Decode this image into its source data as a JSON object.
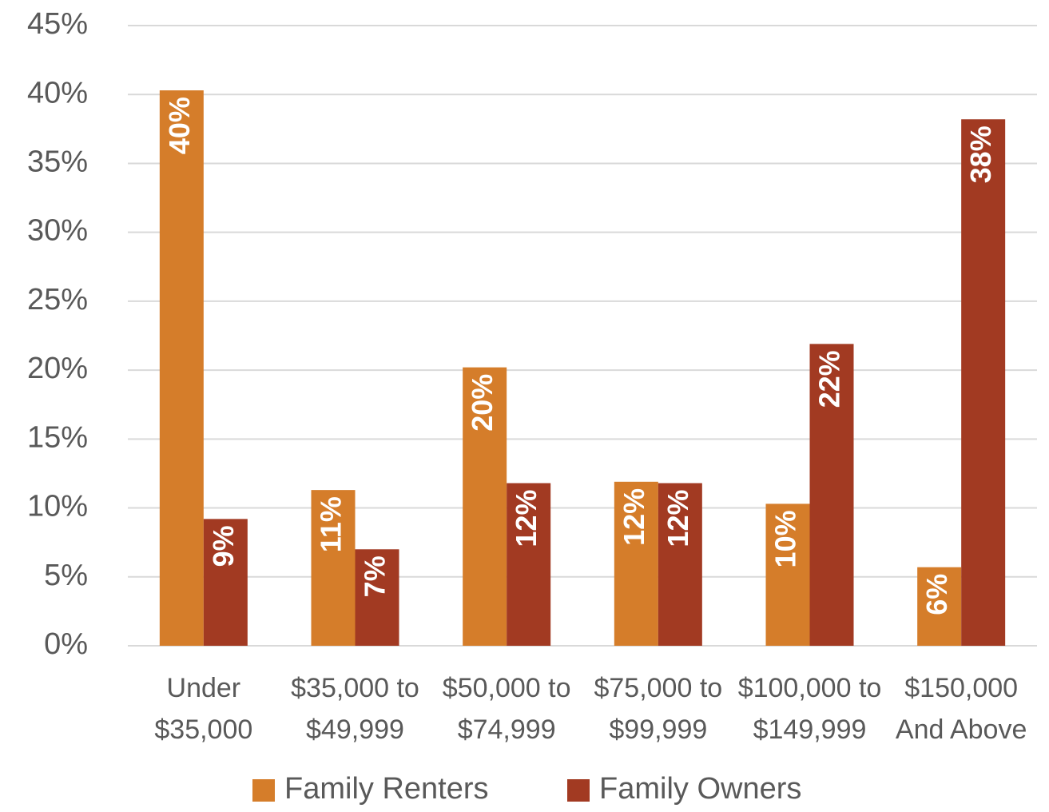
{
  "chart_data": {
    "type": "bar",
    "categories": [
      "Under\n$35,000",
      "$35,000 to\n$49,999",
      "$50,000 to\n$74,999",
      "$75,000 to\n$99,999",
      "$100,000 to\n$149,999",
      "$150,000\nAnd Above"
    ],
    "series": [
      {
        "name": "Family Renters",
        "color": "#D57D2A",
        "values": [
          40.3,
          11.3,
          20.2,
          11.9,
          10.3,
          5.7
        ],
        "value_labels": [
          "40%",
          "11%",
          "20%",
          "12%",
          "10%",
          "6%"
        ]
      },
      {
        "name": "Family Owners",
        "color": "#A23A22",
        "values": [
          9.2,
          7.0,
          11.8,
          11.8,
          21.9,
          38.2
        ],
        "value_labels": [
          "9%",
          "7%",
          "12%",
          "12%",
          "22%",
          "38%"
        ]
      }
    ],
    "ylim": [
      0,
      45
    ],
    "yticks": [
      {
        "value": 0,
        "label": "0%"
      },
      {
        "value": 5,
        "label": "5%"
      },
      {
        "value": 10,
        "label": "10%"
      },
      {
        "value": 15,
        "label": "15%"
      },
      {
        "value": 20,
        "label": "20%"
      },
      {
        "value": 25,
        "label": "25%"
      },
      {
        "value": 30,
        "label": "30%"
      },
      {
        "value": 35,
        "label": "35%"
      },
      {
        "value": 40,
        "label": "40%"
      },
      {
        "value": 45,
        "label": "45%"
      }
    ],
    "grid": true,
    "legend": "bottom"
  }
}
